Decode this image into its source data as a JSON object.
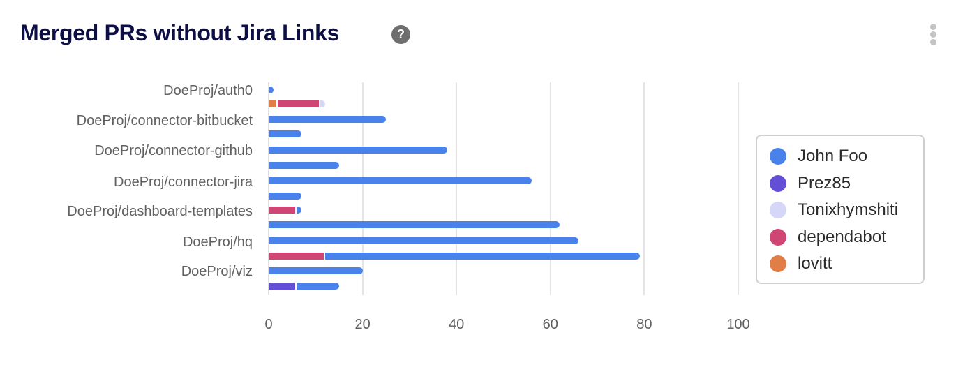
{
  "header": {
    "title": "Merged PRs without Jira Links",
    "help_icon": "?",
    "menu_icon": "vertical-ellipsis"
  },
  "colors": {
    "John Foo": "#4a82ec",
    "Prez85": "#634fd6",
    "Tonixhymshiti": "#d6d6f8",
    "dependabot": "#cf4674",
    "lovitt": "#e17e48"
  },
  "legend": [
    {
      "label": "John Foo",
      "color": "#4a82ec"
    },
    {
      "label": "Prez85",
      "color": "#634fd6"
    },
    {
      "label": "Tonixhymshiti",
      "color": "#d6d6f8"
    },
    {
      "label": "dependabot",
      "color": "#cf4674"
    },
    {
      "label": "lovitt",
      "color": "#e17e48"
    }
  ],
  "x_ticks": [
    "0",
    "20",
    "40",
    "60",
    "80",
    "100"
  ],
  "y_labels": [
    "DoeProj/auth0",
    "DoeProj/connector-bitbucket",
    "DoeProj/connector-github",
    "DoeProj/connector-jira",
    "DoeProj/dashboard-templates",
    "DoeProj/hq",
    "DoeProj/viz"
  ],
  "chart_data": {
    "type": "bar",
    "orientation": "horizontal",
    "stacked": true,
    "title": "Merged PRs without Jira Links",
    "xlabel": "",
    "ylabel": "",
    "xlim": [
      0,
      100
    ],
    "x_ticks": [
      0,
      20,
      40,
      60,
      80,
      100
    ],
    "grid": "vertical",
    "legend_position": "right",
    "categories": [
      "DoeProj/auth0",
      "DoeProj/connector-bitbucket",
      "DoeProj/connector-github",
      "DoeProj/connector-jira",
      "DoeProj/dashboard-templates",
      "DoeProj/hq",
      "DoeProj/viz"
    ],
    "note": "Each repository category has two stacked bars (two sub-rows).",
    "rows": [
      {
        "category": "DoeProj/auth0",
        "bar": 1,
        "segments": [
          {
            "series": "John Foo",
            "value": 1
          }
        ]
      },
      {
        "category": "DoeProj/auth0",
        "bar": 2,
        "segments": [
          {
            "series": "lovitt",
            "value": 2
          },
          {
            "series": "dependabot",
            "value": 9
          },
          {
            "series": "Tonixhymshiti",
            "value": 1
          }
        ]
      },
      {
        "category": "DoeProj/connector-bitbucket",
        "bar": 1,
        "segments": [
          {
            "series": "John Foo",
            "value": 25
          }
        ]
      },
      {
        "category": "DoeProj/connector-bitbucket",
        "bar": 2,
        "segments": [
          {
            "series": "John Foo",
            "value": 7
          }
        ]
      },
      {
        "category": "DoeProj/connector-github",
        "bar": 1,
        "segments": [
          {
            "series": "John Foo",
            "value": 38
          }
        ]
      },
      {
        "category": "DoeProj/connector-github",
        "bar": 2,
        "segments": [
          {
            "series": "John Foo",
            "value": 15
          }
        ]
      },
      {
        "category": "DoeProj/connector-jira",
        "bar": 1,
        "segments": [
          {
            "series": "John Foo",
            "value": 56
          }
        ]
      },
      {
        "category": "DoeProj/connector-jira",
        "bar": 2,
        "segments": [
          {
            "series": "John Foo",
            "value": 7
          }
        ]
      },
      {
        "category": "DoeProj/dashboard-templates",
        "bar": 1,
        "segments": [
          {
            "series": "dependabot",
            "value": 6
          },
          {
            "series": "John Foo",
            "value": 1
          }
        ]
      },
      {
        "category": "DoeProj/dashboard-templates",
        "bar": 2,
        "segments": [
          {
            "series": "John Foo",
            "value": 62
          }
        ]
      },
      {
        "category": "DoeProj/hq",
        "bar": 1,
        "segments": [
          {
            "series": "John Foo",
            "value": 66
          }
        ]
      },
      {
        "category": "DoeProj/hq",
        "bar": 2,
        "segments": [
          {
            "series": "dependabot",
            "value": 12
          },
          {
            "series": "John Foo",
            "value": 67
          }
        ]
      },
      {
        "category": "DoeProj/viz",
        "bar": 1,
        "segments": [
          {
            "series": "John Foo",
            "value": 20
          }
        ]
      },
      {
        "category": "DoeProj/viz",
        "bar": 2,
        "segments": [
          {
            "series": "Prez85",
            "value": 6
          },
          {
            "series": "John Foo",
            "value": 9
          }
        ]
      }
    ],
    "series": [
      {
        "name": "John Foo",
        "color": "#4a82ec"
      },
      {
        "name": "Prez85",
        "color": "#634fd6"
      },
      {
        "name": "Tonixhymshiti",
        "color": "#d6d6f8"
      },
      {
        "name": "dependabot",
        "color": "#cf4674"
      },
      {
        "name": "lovitt",
        "color": "#e17e48"
      }
    ]
  }
}
